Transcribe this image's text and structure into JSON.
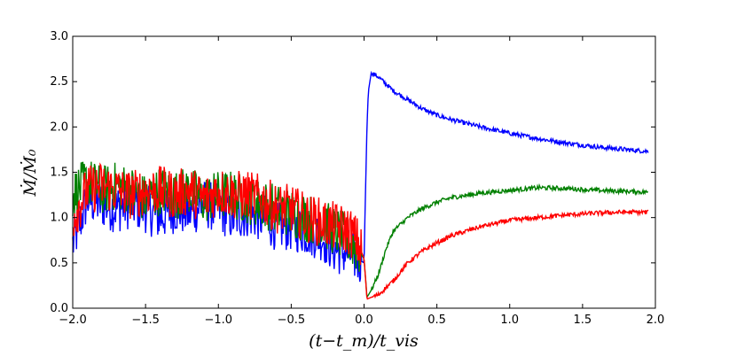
{
  "chart_data": {
    "type": "line",
    "title": "",
    "xlabel": "(t−t_m)/t_vis",
    "ylabel": "Ṁ/Ṁ₀",
    "xlim": [
      -2.0,
      2.0
    ],
    "ylim": [
      0.0,
      3.0
    ],
    "x_ticks": [
      "−2.0",
      "−1.5",
      "−1.0",
      "−0.5",
      "0.0",
      "0.5",
      "1.0",
      "1.5",
      "2.0"
    ],
    "y_ticks": [
      "0.0",
      "0.5",
      "1.0",
      "1.5",
      "2.0",
      "2.5",
      "3.0"
    ],
    "grid": false,
    "legend": "none",
    "series": [
      {
        "color": "#0000ff",
        "noisy_before_zero": true,
        "x": [
          -2.0,
          -1.9,
          -1.8,
          -1.7,
          -1.6,
          -1.5,
          -1.4,
          -1.3,
          -1.2,
          -1.1,
          -1.0,
          -0.9,
          -0.8,
          -0.7,
          -0.6,
          -0.5,
          -0.4,
          -0.3,
          -0.2,
          -0.1,
          -0.05,
          0.0,
          0.01,
          0.02,
          0.03,
          0.05,
          0.1,
          0.2,
          0.3,
          0.4,
          0.5,
          0.6,
          0.8,
          1.0,
          1.2,
          1.4,
          1.6,
          1.8,
          1.95
        ],
        "y": [
          0.7,
          1.2,
          1.15,
          1.1,
          1.15,
          1.1,
          1.0,
          1.1,
          1.05,
          1.15,
          1.1,
          1.0,
          1.05,
          1.0,
          0.9,
          0.9,
          0.85,
          0.8,
          0.65,
          0.6,
          0.55,
          0.5,
          1.3,
          2.0,
          2.4,
          2.6,
          2.55,
          2.4,
          2.3,
          2.2,
          2.13,
          2.08,
          2.0,
          1.93,
          1.87,
          1.82,
          1.78,
          1.75,
          1.73
        ]
      },
      {
        "color": "#008000",
        "noisy_before_zero": true,
        "x": [
          -2.0,
          -1.9,
          -1.8,
          -1.7,
          -1.6,
          -1.5,
          -1.4,
          -1.3,
          -1.2,
          -1.1,
          -1.0,
          -0.9,
          -0.8,
          -0.7,
          -0.6,
          -0.5,
          -0.4,
          -0.3,
          -0.2,
          -0.1,
          -0.05,
          0.0,
          0.02,
          0.05,
          0.1,
          0.15,
          0.2,
          0.3,
          0.4,
          0.5,
          0.6,
          0.8,
          1.0,
          1.2,
          1.4,
          1.6,
          1.8,
          1.95
        ],
        "y": [
          1.25,
          1.4,
          1.3,
          1.35,
          1.3,
          1.2,
          1.3,
          1.25,
          1.3,
          1.2,
          1.25,
          1.25,
          1.2,
          1.15,
          1.1,
          1.05,
          1.0,
          0.95,
          0.85,
          0.75,
          0.65,
          0.55,
          0.12,
          0.2,
          0.38,
          0.65,
          0.85,
          1.0,
          1.1,
          1.17,
          1.22,
          1.27,
          1.3,
          1.33,
          1.32,
          1.3,
          1.29,
          1.28
        ]
      },
      {
        "color": "#ff0000",
        "noisy_before_zero": true,
        "x": [
          -2.0,
          -1.9,
          -1.8,
          -1.7,
          -1.6,
          -1.5,
          -1.4,
          -1.3,
          -1.2,
          -1.1,
          -1.0,
          -0.9,
          -0.8,
          -0.7,
          -0.6,
          -0.5,
          -0.4,
          -0.3,
          -0.2,
          -0.1,
          -0.05,
          0.0,
          0.02,
          0.05,
          0.1,
          0.2,
          0.3,
          0.4,
          0.5,
          0.6,
          0.8,
          1.0,
          1.2,
          1.4,
          1.6,
          1.8,
          1.95
        ],
        "y": [
          1.0,
          1.3,
          1.35,
          1.3,
          1.25,
          1.3,
          1.3,
          1.25,
          1.3,
          1.2,
          1.3,
          1.25,
          1.25,
          1.2,
          1.1,
          1.1,
          1.0,
          0.95,
          0.9,
          0.85,
          0.75,
          0.55,
          0.1,
          0.12,
          0.15,
          0.3,
          0.5,
          0.63,
          0.72,
          0.8,
          0.9,
          0.97,
          1.0,
          1.03,
          1.05,
          1.06,
          1.06
        ]
      }
    ]
  }
}
